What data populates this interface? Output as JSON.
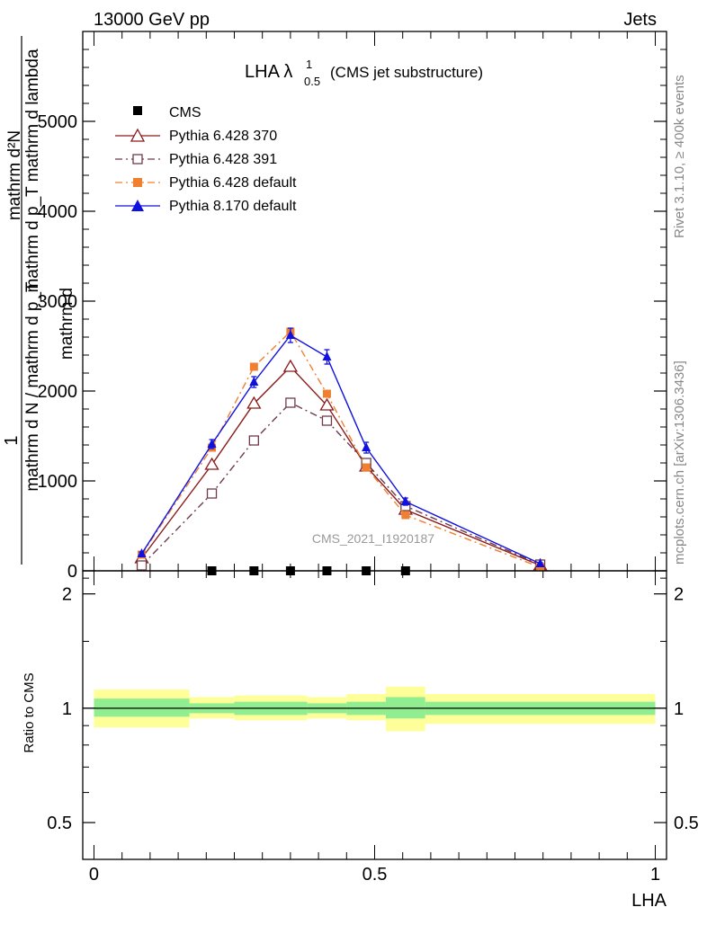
{
  "header": {
    "left": "13000 GeV pp",
    "right": "Jets"
  },
  "side": {
    "rivet": "Rivet 3.1.10, ≥ 400k events",
    "mcplots": "mcplots.cern.ch [arXiv:1306.3436]"
  },
  "chart_data": {
    "type": "line",
    "title_main": "LHA λ",
    "title_sup": "1",
    "title_sub": "0.5",
    "title_rest": "(CMS jet substructure)",
    "watermark": "CMS_2021_I1920187",
    "xlabel": "LHA",
    "ylabel_top_numer": "1",
    "ylabel_top_denom": "mathrm d N / mathrm d p_T",
    "ylabel_top_extra": "mathrm d",
    "ylabel_main": "mathrm d²N",
    "ylabel_main_denom": "mathrm d p_T mathrm d lambda",
    "ratio_ylabel": "Ratio to CMS",
    "xlim": [
      -0.02,
      1.02
    ],
    "ylim": [
      0,
      6000
    ],
    "ratio_ylim": [
      0.4,
      2.3
    ],
    "x_ticks": [
      {
        "v": 0,
        "label": "0"
      },
      {
        "v": 0.5,
        "label": "0.5"
      },
      {
        "v": 1,
        "label": "1"
      }
    ],
    "y_ticks": [
      {
        "v": 0,
        "label": "0"
      },
      {
        "v": 1000,
        "label": "1000"
      },
      {
        "v": 2000,
        "label": "2000"
      },
      {
        "v": 3000,
        "label": "3000"
      },
      {
        "v": 4000,
        "label": "4000"
      },
      {
        "v": 5000,
        "label": "5000"
      }
    ],
    "ratio_ticks": [
      {
        "v": 0.5,
        "label": "0.5"
      },
      {
        "v": 1,
        "label": "1"
      },
      {
        "v": 2,
        "label": "2"
      }
    ],
    "x": [
      0.085,
      0.21,
      0.285,
      0.35,
      0.415,
      0.485,
      0.555,
      0.795
    ],
    "cms": {
      "name": "CMS",
      "x": [
        0.21,
        0.285,
        0.35,
        0.415,
        0.485,
        0.555
      ],
      "values": [
        0,
        0,
        0,
        0,
        0,
        0
      ]
    },
    "series": [
      {
        "name": "Pythia 6.428 370",
        "color": "#8b1a1a",
        "marker": "triangle-open",
        "dash": "",
        "values": [
          140,
          1180,
          1860,
          2270,
          1840,
          1160,
          680,
          60
        ]
      },
      {
        "name": "Pythia 6.428 391",
        "color": "#6e3b4a",
        "marker": "square-open",
        "dash": "8,4,2,4",
        "values": [
          60,
          860,
          1450,
          1870,
          1670,
          1200,
          720,
          70
        ]
      },
      {
        "name": "Pythia 6.428 default",
        "color": "#f08030",
        "marker": "square-filled",
        "dash": "8,4,2,4",
        "values": [
          180,
          1370,
          2270,
          2660,
          1970,
          1150,
          620,
          40
        ]
      },
      {
        "name": "Pythia 8.170 default",
        "color": "#1010e0",
        "marker": "triangle-filled",
        "dash": "",
        "values": [
          190,
          1410,
          2100,
          2620,
          2380,
          1370,
          770,
          80
        ],
        "err": [
          20,
          50,
          60,
          80,
          80,
          60,
          40,
          10
        ]
      }
    ],
    "ratio_bands": [
      {
        "x0": 0.0,
        "x1": 0.17,
        "y_lo": 0.89,
        "y_hi": 1.12,
        "g_lo": 0.95,
        "g_hi": 1.06
      },
      {
        "x0": 0.17,
        "x1": 0.25,
        "y_lo": 0.94,
        "y_hi": 1.07,
        "g_lo": 0.97,
        "g_hi": 1.03
      },
      {
        "x0": 0.25,
        "x1": 0.38,
        "y_lo": 0.93,
        "y_hi": 1.08,
        "g_lo": 0.96,
        "g_hi": 1.04
      },
      {
        "x0": 0.38,
        "x1": 0.45,
        "y_lo": 0.94,
        "y_hi": 1.07,
        "g_lo": 0.97,
        "g_hi": 1.03
      },
      {
        "x0": 0.45,
        "x1": 0.52,
        "y_lo": 0.93,
        "y_hi": 1.09,
        "g_lo": 0.96,
        "g_hi": 1.04
      },
      {
        "x0": 0.52,
        "x1": 0.59,
        "y_lo": 0.87,
        "y_hi": 1.14,
        "g_lo": 0.94,
        "g_hi": 1.07
      },
      {
        "x0": 0.59,
        "x1": 1.0,
        "y_lo": 0.91,
        "y_hi": 1.09,
        "g_lo": 0.96,
        "g_hi": 1.04
      }
    ],
    "legend_position": "top-left",
    "grid": false
  }
}
